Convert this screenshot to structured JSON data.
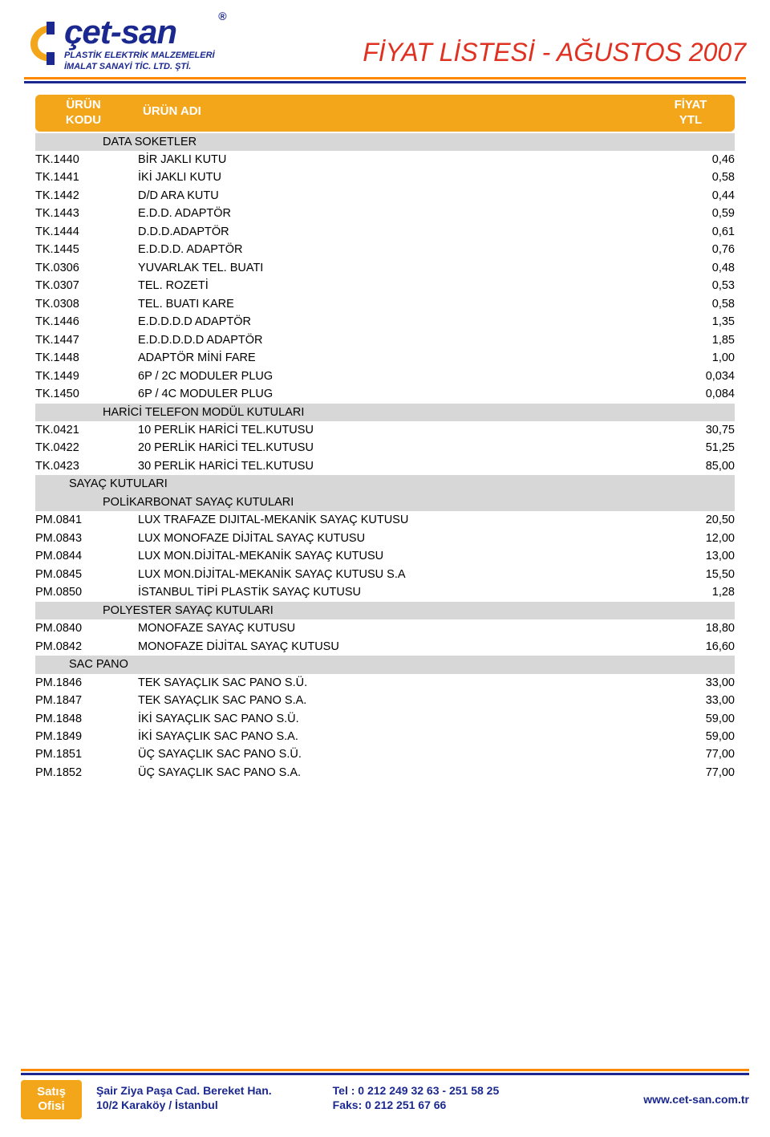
{
  "colors": {
    "brand_blue": "#1b2890",
    "brand_orange": "#f4a61a",
    "title_red": "#e03020",
    "section_gray": "#d7d7d7",
    "rule_orange": "#ff8a00",
    "rule_blue": "#1b2890"
  },
  "logo": {
    "wordmark": "çet-san",
    "registered": "®",
    "sub1": "PLASTİK ELEKTRİK MALZEMELERİ",
    "sub2": "İMALAT SANAYİ TİC. LTD. ŞTİ."
  },
  "document": {
    "title": "FİYAT LİSTESİ - AĞUSTOS 2007"
  },
  "header": {
    "col_code_l1": "ÜRÜN",
    "col_code_l2": "KODU",
    "col_name": "ÜRÜN ADI",
    "col_price_l1": "FİYAT",
    "col_price_l2": "YTL"
  },
  "rows": [
    {
      "type": "section",
      "indent": 2,
      "name": "DATA SOKETLER"
    },
    {
      "type": "item",
      "code": "TK.1440",
      "name": "BİR JAKLI KUTU",
      "price": "0,46"
    },
    {
      "type": "item",
      "code": "TK.1441",
      "name": "İKİ JAKLI KUTU",
      "price": "0,58"
    },
    {
      "type": "item",
      "code": "TK.1442",
      "name": "D/D ARA KUTU",
      "price": "0,44"
    },
    {
      "type": "item",
      "code": "TK.1443",
      "name": "E.D.D. ADAPTÖR",
      "price": "0,59"
    },
    {
      "type": "item",
      "code": "TK.1444",
      "name": "D.D.D.ADAPTÖR",
      "price": "0,61"
    },
    {
      "type": "item",
      "code": "TK.1445",
      "name": "E.D.D.D. ADAPTÖR",
      "price": "0,76"
    },
    {
      "type": "item",
      "code": "TK.0306",
      "name": "YUVARLAK TEL. BUATI",
      "price": "0,48"
    },
    {
      "type": "item",
      "code": "TK.0307",
      "name": "TEL. ROZETİ",
      "price": "0,53"
    },
    {
      "type": "item",
      "code": "TK.0308",
      "name": "TEL. BUATI KARE",
      "price": "0,58"
    },
    {
      "type": "item",
      "code": "TK.1446",
      "name": "E.D.D.D.D ADAPTÖR",
      "price": "1,35"
    },
    {
      "type": "item",
      "code": "TK.1447",
      "name": "E.D.D.D.D.D ADAPTÖR",
      "price": "1,85"
    },
    {
      "type": "item",
      "code": "TK.1448",
      "name": "ADAPTÖR MİNİ FARE",
      "price": "1,00"
    },
    {
      "type": "item",
      "code": "TK.1449",
      "name": "6P / 2C MODULER PLUG",
      "price": "0,034"
    },
    {
      "type": "item",
      "code": "TK.1450",
      "name": "6P / 4C MODULER PLUG",
      "price": "0,084"
    },
    {
      "type": "section",
      "indent": 2,
      "name": "HARİCİ TELEFON MODÜL KUTULARI"
    },
    {
      "type": "item",
      "code": "TK.0421",
      "name": "10 PERLİK HARİCİ TEL.KUTUSU",
      "price": "30,75"
    },
    {
      "type": "item",
      "code": "TK.0422",
      "name": "20 PERLİK HARİCİ TEL.KUTUSU",
      "price": "51,25"
    },
    {
      "type": "item",
      "code": "TK.0423",
      "name": "30 PERLİK HARİCİ TEL.KUTUSU",
      "price": "85,00"
    },
    {
      "type": "section",
      "indent": 1,
      "name": "SAYAÇ KUTULARI"
    },
    {
      "type": "section",
      "indent": 2,
      "name": "POLİKARBONAT SAYAÇ KUTULARI"
    },
    {
      "type": "item",
      "code": "PM.0841",
      "name": "LUX TRAFAZE DIJITAL-MEKANİK SAYAÇ KUTUSU",
      "price": "20,50"
    },
    {
      "type": "item",
      "code": "PM.0843",
      "name": "LUX MONOFAZE DİJİTAL SAYAÇ KUTUSU",
      "price": "12,00"
    },
    {
      "type": "item",
      "code": "PM.0844",
      "name": "LUX MON.DİJİTAL-MEKANİK SAYAÇ KUTUSU",
      "price": "13,00"
    },
    {
      "type": "item",
      "code": "PM.0845",
      "name": "LUX MON.DİJİTAL-MEKANİK SAYAÇ KUTUSU S.A",
      "price": "15,50"
    },
    {
      "type": "item",
      "code": "PM.0850",
      "name": "İSTANBUL TİPİ PLASTİK SAYAÇ KUTUSU",
      "price": "1,28"
    },
    {
      "type": "section",
      "indent": 2,
      "name": "POLYESTER SAYAÇ KUTULARI"
    },
    {
      "type": "item",
      "code": "PM.0840",
      "name": "MONOFAZE SAYAÇ KUTUSU",
      "price": "18,80"
    },
    {
      "type": "item",
      "code": "PM.0842",
      "name": "MONOFAZE DİJİTAL SAYAÇ KUTUSU",
      "price": "16,60"
    },
    {
      "type": "section",
      "indent": 1,
      "name": "SAC PANO"
    },
    {
      "type": "item",
      "code": "PM.1846",
      "name": "TEK SAYAÇLIK SAC PANO S.Ü.",
      "price": "33,00"
    },
    {
      "type": "item",
      "code": "PM.1847",
      "name": "TEK SAYAÇLIK SAC PANO S.A.",
      "price": "33,00"
    },
    {
      "type": "item",
      "code": "PM.1848",
      "name": "İKİ SAYAÇLIK SAC PANO S.Ü.",
      "price": "59,00"
    },
    {
      "type": "item",
      "code": "PM.1849",
      "name": "İKİ SAYAÇLIK SAC PANO S.A.",
      "price": "59,00"
    },
    {
      "type": "item",
      "code": "PM.1851",
      "name": "ÜÇ SAYAÇLIK SAC PANO S.Ü.",
      "price": "77,00"
    },
    {
      "type": "item",
      "code": "PM.1852",
      "name": "ÜÇ SAYAÇLIK SAC PANO S.A.",
      "price": "77,00"
    }
  ],
  "footer": {
    "left_l1": "Satış",
    "left_l2": "Ofisi",
    "addr_l1": "Şair Ziya Paşa Cad. Bereket Han.",
    "addr_l2": "10/2 Karaköy / İstanbul",
    "tel_l1": "Tel  : 0 212 249 32 63 - 251 58 25",
    "tel_l2": "Faks: 0 212 251 67 66",
    "url": "www.cet-san.com.tr"
  }
}
